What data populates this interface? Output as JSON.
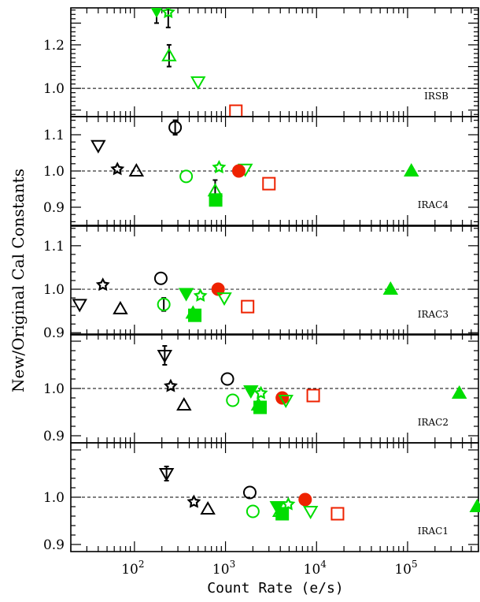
{
  "chart_data": {
    "type": "scatter",
    "x_scale": "log",
    "xlim": [
      20,
      600000
    ],
    "xlabel": "Count Rate (e/s)",
    "ylabel": "New/Original Cal Constants",
    "grid": false,
    "x_tick_labels": [
      {
        "value": 100,
        "base": "10",
        "exp": "2"
      },
      {
        "value": 1000,
        "base": "10",
        "exp": "3"
      },
      {
        "value": 10000,
        "base": "10",
        "exp": "4"
      },
      {
        "value": 100000,
        "base": "10",
        "exp": "5"
      }
    ],
    "colors": {
      "black": "#000000",
      "green": "#00dd00",
      "red": "#ee2200"
    },
    "panels": [
      {
        "name": "IRSB",
        "label": "IRSB",
        "ylim": [
          0.87,
          1.37
        ],
        "y_ticks": [
          {
            "value": 1.0,
            "label": "1.0"
          },
          {
            "value": 1.2,
            "label": "1.2"
          }
        ],
        "reference": 1.0,
        "points": [
          {
            "x": 175,
            "y": 1.36,
            "marker": "tri_down",
            "color": "green",
            "filled": true,
            "err": 0.06
          },
          {
            "x": 235,
            "y": 1.35,
            "marker": "star",
            "color": "green",
            "filled": false,
            "err": 0.07
          },
          {
            "x": 240,
            "y": 1.15,
            "marker": "tri_up",
            "color": "green",
            "filled": false,
            "err": 0.05
          },
          {
            "x": 500,
            "y": 1.03,
            "marker": "tri_down",
            "color": "green",
            "filled": false
          },
          {
            "x": 1300,
            "y": 0.895,
            "marker": "square",
            "color": "red",
            "filled": false
          }
        ]
      },
      {
        "name": "IRAC4",
        "label": "IRAC4",
        "ylim": [
          0.85,
          1.15
        ],
        "y_ticks": [
          {
            "value": 0.9,
            "label": "0.9"
          },
          {
            "value": 1.0,
            "label": "1.0"
          },
          {
            "value": 1.1,
            "label": "1.1"
          }
        ],
        "reference": 1.0,
        "points": [
          {
            "x": 280,
            "y": 1.12,
            "marker": "circle",
            "color": "black",
            "filled": false,
            "err": 0.02
          },
          {
            "x": 40,
            "y": 1.07,
            "marker": "tri_down",
            "color": "black",
            "filled": false
          },
          {
            "x": 65,
            "y": 1.005,
            "marker": "star",
            "color": "black",
            "filled": false
          },
          {
            "x": 105,
            "y": 1.0,
            "marker": "tri_up",
            "color": "black",
            "filled": false
          },
          {
            "x": 370,
            "y": 0.985,
            "marker": "circle",
            "color": "green",
            "filled": false
          },
          {
            "x": 850,
            "y": 1.01,
            "marker": "star",
            "color": "green",
            "filled": false
          },
          {
            "x": 1650,
            "y": 1.005,
            "marker": "tri_down",
            "color": "green",
            "filled": false
          },
          {
            "x": 770,
            "y": 0.945,
            "marker": "tri_up",
            "color": "green",
            "filled": false,
            "err": 0.03
          },
          {
            "x": 780,
            "y": 0.92,
            "marker": "square",
            "color": "green",
            "filled": true
          },
          {
            "x": 1400,
            "y": 1.0,
            "marker": "circle",
            "color": "red",
            "filled": true
          },
          {
            "x": 3000,
            "y": 0.965,
            "marker": "square",
            "color": "red",
            "filled": false
          },
          {
            "x": 110000,
            "y": 1.0,
            "marker": "tri_up",
            "color": "green",
            "filled": true
          }
        ]
      },
      {
        "name": "IRAC3",
        "label": "IRAC3",
        "ylim": [
          0.895,
          1.145
        ],
        "y_ticks": [
          {
            "value": 0.9,
            "label": "0.9"
          },
          {
            "value": 1.0,
            "label": "1.0"
          },
          {
            "value": 1.1,
            "label": "1.1"
          }
        ],
        "reference": 1.0,
        "points": [
          {
            "x": 45,
            "y": 1.01,
            "marker": "star",
            "color": "black",
            "filled": false
          },
          {
            "x": 25,
            "y": 0.965,
            "marker": "tri_down",
            "color": "black",
            "filled": false
          },
          {
            "x": 70,
            "y": 0.955,
            "marker": "tri_up",
            "color": "black",
            "filled": false
          },
          {
            "x": 195,
            "y": 1.025,
            "marker": "circle",
            "color": "black",
            "filled": false
          },
          {
            "x": 210,
            "y": 0.965,
            "marker": "circle",
            "color": "green",
            "filled": false,
            "err": 0.015
          },
          {
            "x": 370,
            "y": 0.99,
            "marker": "tri_down",
            "color": "green",
            "filled": true
          },
          {
            "x": 530,
            "y": 0.985,
            "marker": "star",
            "color": "green",
            "filled": false
          },
          {
            "x": 440,
            "y": 0.945,
            "marker": "tri_up",
            "color": "green",
            "filled": false
          },
          {
            "x": 460,
            "y": 0.94,
            "marker": "square",
            "color": "green",
            "filled": true
          },
          {
            "x": 830,
            "y": 1.0,
            "marker": "circle",
            "color": "red",
            "filled": true
          },
          {
            "x": 970,
            "y": 0.98,
            "marker": "tri_down",
            "color": "green",
            "filled": false
          },
          {
            "x": 1750,
            "y": 0.96,
            "marker": "square",
            "color": "red",
            "filled": false
          },
          {
            "x": 65000,
            "y": 1.0,
            "marker": "tri_up",
            "color": "green",
            "filled": true
          }
        ]
      },
      {
        "name": "IRAC2",
        "label": "IRAC2",
        "ylim": [
          0.885,
          1.115
        ],
        "y_ticks": [
          {
            "value": 0.9,
            "label": "0.9"
          },
          {
            "value": 1.0,
            "label": "1.0"
          }
        ],
        "reference": 1.0,
        "points": [
          {
            "x": 215,
            "y": 1.07,
            "marker": "tri_down",
            "color": "black",
            "filled": false,
            "err": 0.02
          },
          {
            "x": 250,
            "y": 1.005,
            "marker": "star",
            "color": "black",
            "filled": false
          },
          {
            "x": 350,
            "y": 0.965,
            "marker": "tri_up",
            "color": "black",
            "filled": false
          },
          {
            "x": 1050,
            "y": 1.02,
            "marker": "circle",
            "color": "black",
            "filled": false
          },
          {
            "x": 1200,
            "y": 0.975,
            "marker": "circle",
            "color": "green",
            "filled": false
          },
          {
            "x": 1900,
            "y": 0.995,
            "marker": "tri_down",
            "color": "green",
            "filled": true
          },
          {
            "x": 2450,
            "y": 0.99,
            "marker": "star",
            "color": "green",
            "filled": false
          },
          {
            "x": 2300,
            "y": 0.965,
            "marker": "tri_up",
            "color": "green",
            "filled": false
          },
          {
            "x": 2400,
            "y": 0.96,
            "marker": "square",
            "color": "green",
            "filled": true
          },
          {
            "x": 4200,
            "y": 0.98,
            "marker": "circle",
            "color": "red",
            "filled": true
          },
          {
            "x": 4600,
            "y": 0.975,
            "marker": "tri_down",
            "color": "green",
            "filled": false
          },
          {
            "x": 9200,
            "y": 0.985,
            "marker": "square",
            "color": "red",
            "filled": false
          },
          {
            "x": 370000,
            "y": 0.99,
            "marker": "tri_up",
            "color": "green",
            "filled": true
          }
        ]
      },
      {
        "name": "IRAC1",
        "label": "IRAC1",
        "ylim": [
          0.885,
          1.115
        ],
        "y_ticks": [
          {
            "value": 0.9,
            "label": "0.9"
          },
          {
            "value": 1.0,
            "label": "1.0"
          }
        ],
        "reference": 1.0,
        "points": [
          {
            "x": 225,
            "y": 1.05,
            "marker": "tri_down",
            "color": "black",
            "filled": false,
            "err": 0.015
          },
          {
            "x": 450,
            "y": 0.99,
            "marker": "star",
            "color": "black",
            "filled": false
          },
          {
            "x": 640,
            "y": 0.975,
            "marker": "tri_up",
            "color": "black",
            "filled": false
          },
          {
            "x": 1850,
            "y": 1.01,
            "marker": "circle",
            "color": "black",
            "filled": false
          },
          {
            "x": 2000,
            "y": 0.97,
            "marker": "circle",
            "color": "green",
            "filled": false
          },
          {
            "x": 3700,
            "y": 0.98,
            "marker": "tri_down",
            "color": "green",
            "filled": true
          },
          {
            "x": 4900,
            "y": 0.985,
            "marker": "star",
            "color": "green",
            "filled": false
          },
          {
            "x": 3950,
            "y": 0.97,
            "marker": "tri_up",
            "color": "green",
            "filled": false
          },
          {
            "x": 4200,
            "y": 0.965,
            "marker": "square",
            "color": "green",
            "filled": true
          },
          {
            "x": 7500,
            "y": 0.995,
            "marker": "circle",
            "color": "red",
            "filled": true
          },
          {
            "x": 8600,
            "y": 0.97,
            "marker": "tri_down",
            "color": "green",
            "filled": false
          },
          {
            "x": 17000,
            "y": 0.965,
            "marker": "square",
            "color": "red",
            "filled": false
          },
          {
            "x": 580000,
            "y": 0.98,
            "marker": "tri_up",
            "color": "green",
            "filled": true
          }
        ]
      }
    ]
  }
}
